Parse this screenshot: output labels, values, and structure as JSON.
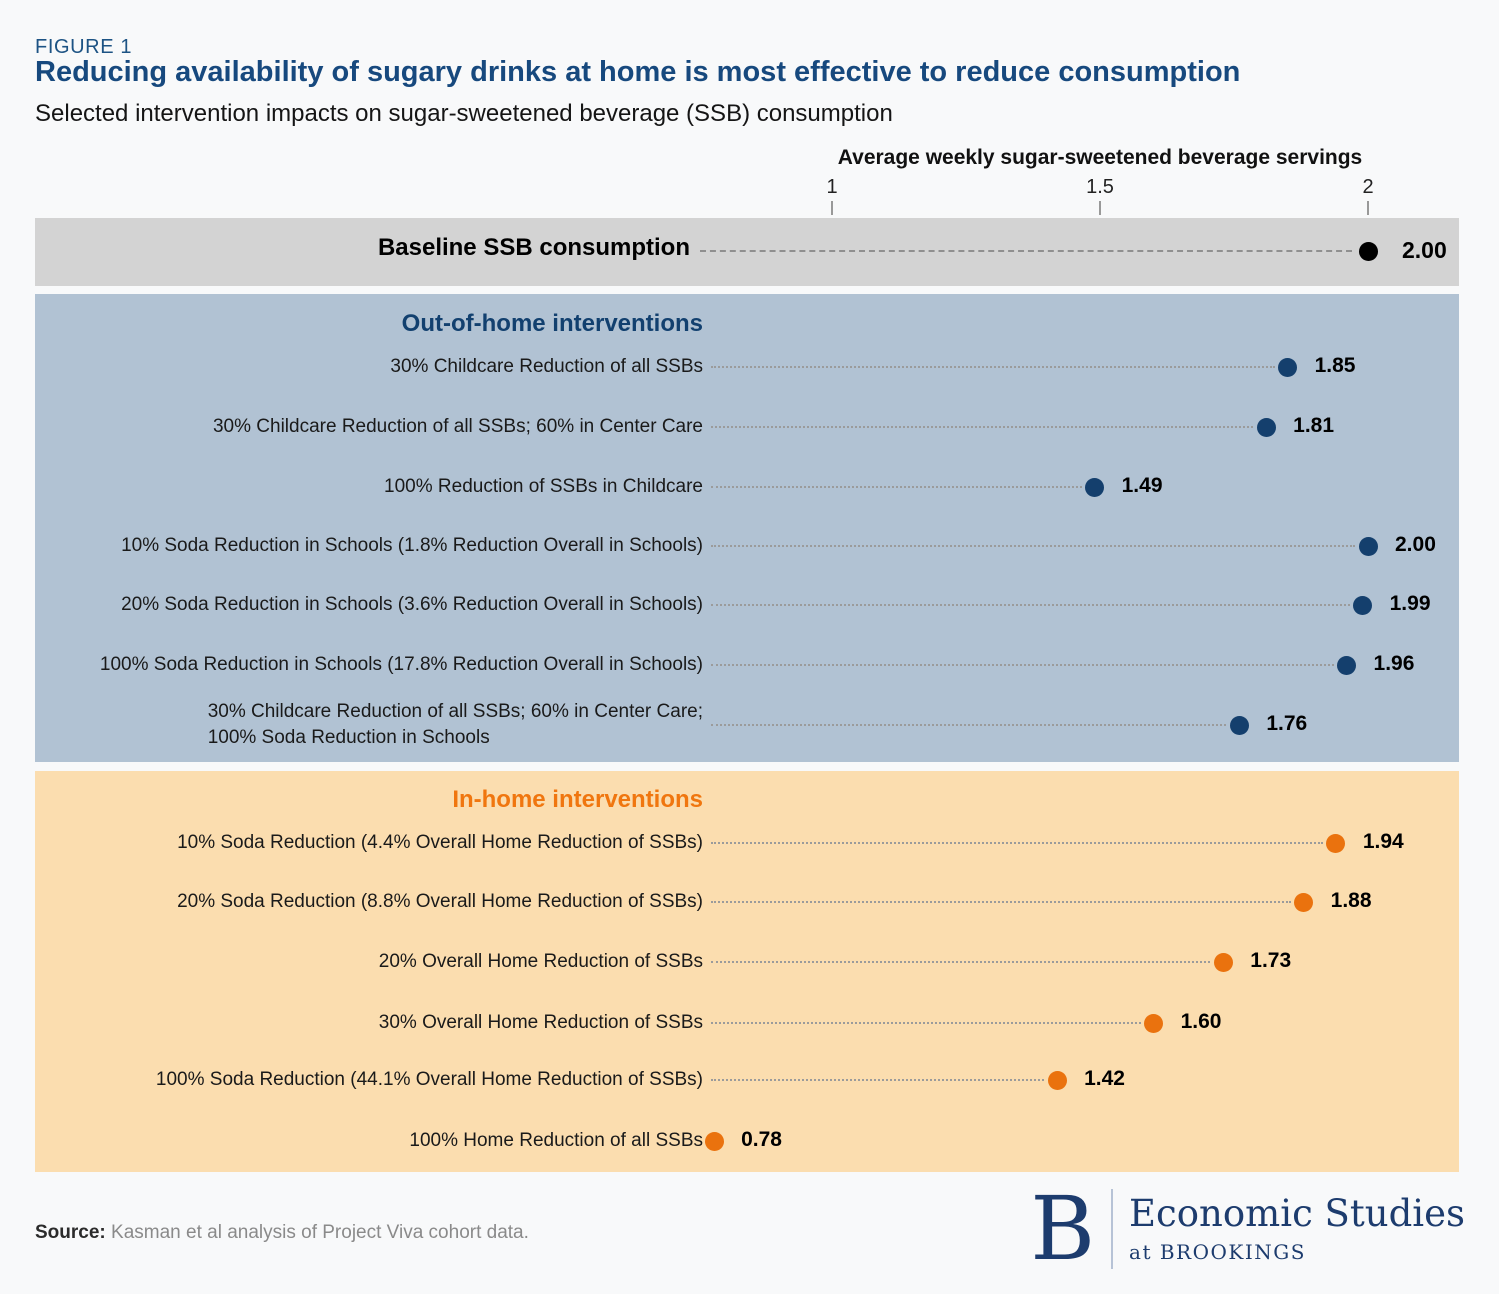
{
  "figure_label": "FIGURE 1",
  "title": "Reducing availability of sugary drinks at home is most effective to reduce consumption",
  "subtitle": "Selected intervention impacts on sugar-sweetened beverage (SSB) consumption",
  "source": {
    "label": "Source:",
    "text": " Kasman et al analysis of Project Viva cohort data."
  },
  "logo": {
    "letter": "B",
    "line1": "Economic Studies",
    "line2": "at BROOKINGS"
  },
  "colors": {
    "navy_dot": "#143f6d",
    "navy_header": "#12406f",
    "orange_dot": "#ea720e",
    "orange_header": "#f0760f",
    "baseline_dot": "#000000",
    "gray_band": "#d3d3d3",
    "blue_band": "#b1c2d3",
    "orange_band": "#fbddaf",
    "title_navy": "#17497e"
  },
  "chart_data": {
    "type": "scatter",
    "subtype": "dot-plot-with-leaders",
    "axis_title": "Average weekly sugar-sweetened beverage servings",
    "tick_labels": [
      "1",
      "1.5",
      "2"
    ],
    "tick_values": [
      1,
      1.5,
      2
    ],
    "xlim": [
      1,
      2
    ],
    "grid": false,
    "baseline": {
      "label": "Baseline SSB consumption",
      "value": 2.0,
      "display": "2.00"
    },
    "groups": [
      {
        "name": "Out-of-home interventions",
        "dot_color": "#143f6d",
        "rows": [
          {
            "label_lines": [
              "30% Childcare Reduction of all SSBs"
            ],
            "value": 1.85,
            "display": "1.85"
          },
          {
            "label_lines": [
              "30% Childcare Reduction of all SSBs; 60% in Center Care"
            ],
            "value": 1.81,
            "display": "1.81"
          },
          {
            "label_lines": [
              "100% Reduction of SSBs in Childcare"
            ],
            "value": 1.49,
            "display": "1.49"
          },
          {
            "label_lines": [
              "10% Soda Reduction in Schools (1.8% Reduction Overall in Schools)"
            ],
            "value": 2.0,
            "display": "2.00"
          },
          {
            "label_lines": [
              "20% Soda Reduction in Schools (3.6% Reduction Overall in Schools)"
            ],
            "value": 1.99,
            "display": "1.99"
          },
          {
            "label_lines": [
              "100% Soda Reduction in Schools (17.8% Reduction Overall in Schools)"
            ],
            "value": 1.96,
            "display": "1.96"
          },
          {
            "label_lines": [
              "30% Childcare Reduction of all SSBs; 60% in Center Care;",
              "100% Soda Reduction in Schools"
            ],
            "value": 1.76,
            "display": "1.76"
          }
        ]
      },
      {
        "name": "In-home interventions",
        "dot_color": "#ea720e",
        "rows": [
          {
            "label_lines": [
              "10% Soda Reduction (4.4% Overall Home Reduction of SSBs)"
            ],
            "value": 1.94,
            "display": "1.94"
          },
          {
            "label_lines": [
              "20% Soda Reduction (8.8%  Overall Home Reduction of SSBs)"
            ],
            "value": 1.88,
            "display": "1.88"
          },
          {
            "label_lines": [
              "20% Overall Home Reduction of SSBs"
            ],
            "value": 1.73,
            "display": "1.73"
          },
          {
            "label_lines": [
              "30% Overall Home Reduction of SSBs"
            ],
            "value": 1.6,
            "display": "1.60"
          },
          {
            "label_lines": [
              "100% Soda Reduction (44.1% Overall Home Reduction of SSBs)"
            ],
            "value": 1.42,
            "display": "1.42"
          },
          {
            "label_lines": [
              "100% Home Reduction of all SSBs"
            ],
            "value": 0.78,
            "display": "0.78"
          }
        ]
      }
    ]
  }
}
